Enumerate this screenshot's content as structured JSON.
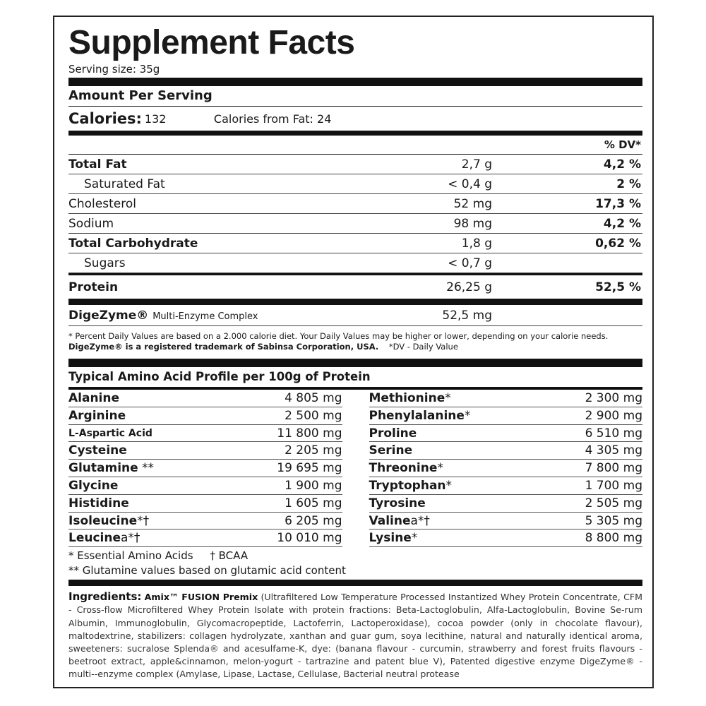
{
  "title": "Supplement Facts",
  "serving_size": "Serving size: 35g",
  "amount_per_serving": "Amount Per Serving",
  "calories": {
    "label": "Calories:",
    "value": "132",
    "from_fat": "Calories from Fat: 24"
  },
  "dv_header": "% DV*",
  "nutrients": [
    {
      "name": "Total Fat",
      "amount": "2,7 g",
      "dv": "4,2 %"
    },
    {
      "name": "Saturated Fat",
      "amount": "< 0,4 g",
      "dv": "2 %"
    },
    {
      "name": "Cholesterol",
      "amount": "52 mg",
      "dv": "17,3 %"
    },
    {
      "name": "Sodium",
      "amount": "98 mg",
      "dv": "4,2 %"
    },
    {
      "name": "Total Carbohydrate",
      "amount": "1,8 g",
      "dv": "0,62 %"
    },
    {
      "name": "Sugars",
      "amount": "< 0,7 g",
      "dv": ""
    },
    {
      "name": "Protein",
      "amount": "26,25 g",
      "dv": "52,5 %"
    }
  ],
  "digezyme": {
    "name": "DigeZyme®",
    "desc": "Multi-Enzyme Complex",
    "amount": "52,5 mg"
  },
  "footnote1": "* Percent Daily Values are based on a 2.000 calorie diet. Your Daily Values may be higher or lower, depending on your calorie needs.",
  "footnote2_bold": "DigeZyme® is a registered trademark of Sabinsa Corporation, USA.",
  "footnote2_dv": "*DV - Daily Value",
  "amino_header": "Typical Amino Acid Profile per 100g of Protein",
  "amino_left": [
    {
      "name": "Alanine",
      "mark": "",
      "amount": "4 805 mg"
    },
    {
      "name": "Arginine",
      "mark": "",
      "amount": "2 500 mg"
    },
    {
      "name": "L-Aspartic Acid",
      "mark": "",
      "amount": "11 800 mg"
    },
    {
      "name": "Cysteine",
      "mark": "",
      "amount": "2 205 mg"
    },
    {
      "name": "Glutamine",
      "mark": " **",
      "amount": "19 695 mg"
    },
    {
      "name": "Glycine",
      "mark": "",
      "amount": "1 900 mg"
    },
    {
      "name": "Histidine",
      "mark": "",
      "amount": "1 605 mg"
    },
    {
      "name": "Isoleucine",
      "mark": "*†",
      "amount": "6 205 mg"
    },
    {
      "name": "Leucine",
      "mark": "a*†",
      "amount": "10 010 mg"
    }
  ],
  "amino_right": [
    {
      "name": "Methionine",
      "mark": "*",
      "amount": "2 300 mg"
    },
    {
      "name": "Phenylalanine",
      "mark": "*",
      "amount": "2 900 mg"
    },
    {
      "name": "Proline",
      "mark": "",
      "amount": "6 510 mg"
    },
    {
      "name": "Serine",
      "mark": "",
      "amount": "4 305 mg"
    },
    {
      "name": "Threonine",
      "mark": "*",
      "amount": "7 800 mg"
    },
    {
      "name": "Tryptophan",
      "mark": "*",
      "amount": "1 700 mg"
    },
    {
      "name": "Tyrosine",
      "mark": "",
      "amount": "2 505 mg"
    },
    {
      "name": "Valine",
      "mark": "a*†",
      "amount": "5 305 mg"
    },
    {
      "name": "Lysine",
      "mark": "*",
      "amount": "8 800 mg"
    }
  ],
  "amino_footnote1": "* Essential Amino Acids     † BCAA",
  "amino_footnote2": "** Glutamine values based on glutamic acid content",
  "ingredients": {
    "label": "Ingredients:",
    "brand": "Amix™ FUSION Premix",
    "text": " (Ultrafiltered Low Temperature Processed Instantized Whey Protein Concentrate, CFM - Cross-flow Microfiltered Whey Protein Isolate with protein fractions: Beta-Lactoglobulin, Alfa-Lactoglobulin, Bovine Se-rum Albumin, Immunoglobulin, Glycomacropeptide, Lactoferrin, Lactoperoxidase), cocoa powder (only in chocolate flavour), maltodextrine, stabilizers: collagen hydrolyzate, xanthan and guar gum, soya lecithine, natural and naturally identical aroma, sweeteners: sucralose Splenda® and acesulfame-K, dye: (banana flavour - curcumin, strawberry and forest fruits flavours - beetroot extract, apple&cinnamon, melon-yogurt - tartrazine and patent blue V), Patented digestive enzyme DigeZyme® - multi--enzyme complex (Amylase, Lipase, Lactase, Cellulase, Bacterial neutral protease"
  }
}
